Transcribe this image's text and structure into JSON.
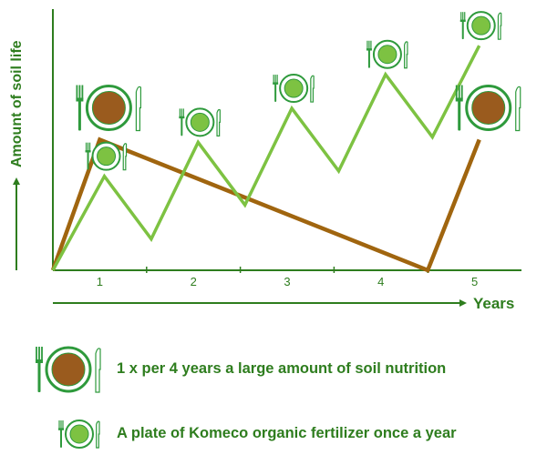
{
  "colors": {
    "green_axis": "#2e7d1e",
    "green_line": "#7dc242",
    "brown_line": "#a0650f",
    "plate_green": "#2e9a3c",
    "plate_brown": "#9a5b1e"
  },
  "chart_data": {
    "type": "line",
    "title": "",
    "ylabel": "Amount of soil life",
    "xlabel": "Years",
    "x_ticks": [
      "1",
      "2",
      "3",
      "4",
      "5"
    ],
    "xlim": [
      0.5,
      5.5
    ],
    "ylim": [
      0,
      100
    ],
    "grid": false,
    "series": [
      {
        "name": "A plate of Komeco organic fertilizer once a year",
        "color": "#7dc242",
        "icon": "small-plate-icon",
        "x": [
          0.5,
          1.05,
          1.55,
          2.05,
          2.55,
          3.05,
          3.55,
          4.05,
          4.55,
          5.05
        ],
        "y": [
          0,
          36,
          12,
          49,
          25,
          62,
          38,
          75,
          51,
          86
        ]
      },
      {
        "name": "1 x per 4 years a large amount of soil nutrition",
        "color": "#a0650f",
        "icon": "large-plate-icon",
        "x": [
          0.5,
          1.0,
          4.5,
          5.05
        ],
        "y": [
          0,
          50,
          0,
          50
        ]
      }
    ],
    "legend": [
      {
        "icon": "large-plate-icon",
        "text": "1 x per 4 years a large amount of soil nutrition"
      },
      {
        "icon": "small-plate-icon",
        "text": "A plate of Komeco organic fertilizer once a year"
      }
    ]
  }
}
